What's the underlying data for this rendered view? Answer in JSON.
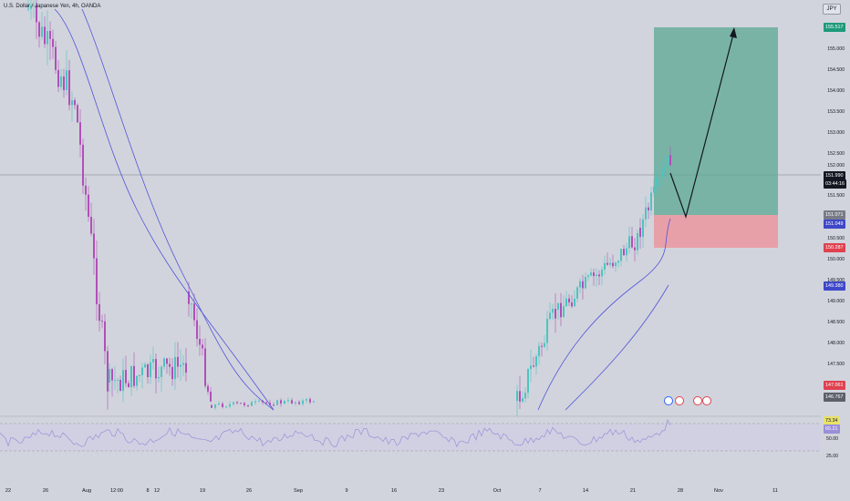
{
  "header": {
    "symbol_title": "U.S. Dollar / Japanese Yen, 4h, OANDA",
    "currency_button": "JPY"
  },
  "price_axis": {
    "ticks": [
      "155.000",
      "154.500",
      "154.000",
      "153.500",
      "153.000",
      "152.500",
      "152.000",
      "151.500",
      "150.500",
      "150.000",
      "149.500",
      "149.000",
      "148.500",
      "148.000",
      "147.500"
    ]
  },
  "badges": {
    "target": "155.517",
    "last_price": "151.990",
    "countdown": "03:44:16",
    "entry": "151.071",
    "ma_fast": "151.049",
    "stop": "150.287",
    "ma_slow": "149.380",
    "low_red": "147.061",
    "low_grey": "146.767"
  },
  "time_axis": {
    "labels": [
      "22",
      "26",
      "Aug",
      "12:00",
      "8",
      "12",
      "19",
      "26",
      "Sep",
      "9",
      "16",
      "23",
      "Oct",
      "7",
      "14",
      "21",
      "28",
      "Nov",
      "11"
    ]
  },
  "rsi": {
    "upper_value": "73.34",
    "lower_value": "65.21",
    "ticks": [
      "50.00",
      "25.00"
    ]
  },
  "icons": {
    "currency_button": "currency-selector",
    "events": [
      "earnings-icon",
      "us-flag-icon",
      "us-flag-icon"
    ]
  },
  "colors": {
    "background": "#d1d4dc",
    "bull": "#4dc4c0",
    "bear": "#b14fb8",
    "ma": "#5355d8",
    "profit_zone": "#5ba894",
    "loss_zone": "#e99aa2",
    "rsi_line": "#9b8fd8"
  }
}
